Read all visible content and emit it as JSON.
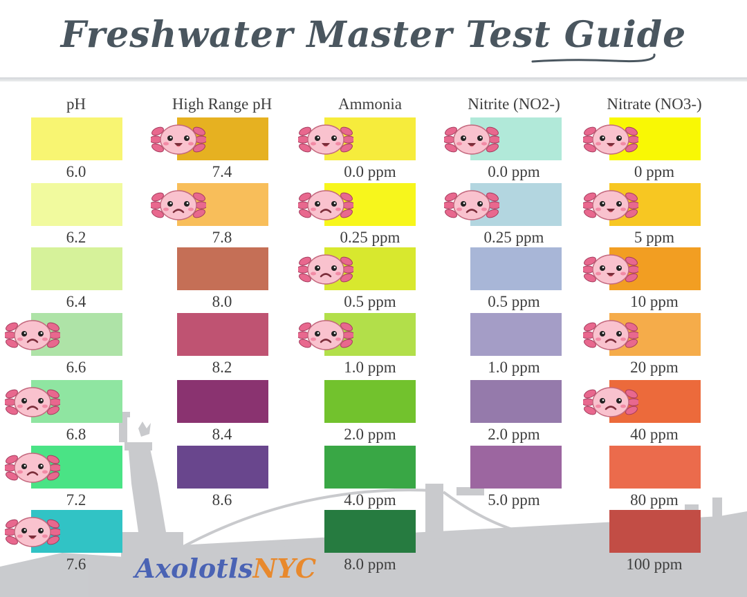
{
  "title": "Freshwater Master Test Guide",
  "logo": {
    "part1": "Axolotls",
    "part2": "NYC"
  },
  "colors": {
    "title": "#4a565f",
    "text": "#3d3d3d",
    "skyline": "#b7b9bd",
    "axolotl_body": "#f9c2ce",
    "axolotl_gills": "#e8688e"
  },
  "columns": [
    {
      "header": "pH",
      "items": [
        {
          "value": "6.0",
          "color": "#f8f572",
          "axolotl": "none"
        },
        {
          "value": "6.2",
          "color": "#f1fa9e",
          "axolotl": "none"
        },
        {
          "value": "6.4",
          "color": "#d6f29a",
          "axolotl": "none"
        },
        {
          "value": "6.6",
          "color": "#aee3a7",
          "axolotl": "sad"
        },
        {
          "value": "6.8",
          "color": "#8fe5a1",
          "axolotl": "sad"
        },
        {
          "value": "7.2",
          "color": "#4ae385",
          "axolotl": "sad"
        },
        {
          "value": "7.6",
          "color": "#31c3c5",
          "axolotl": "happy"
        }
      ]
    },
    {
      "header": "High Range pH",
      "items": [
        {
          "value": "7.4",
          "color": "#e6b121",
          "axolotl": "happy"
        },
        {
          "value": "7.8",
          "color": "#f8be5a",
          "axolotl": "sad"
        },
        {
          "value": "8.0",
          "color": "#c56f56",
          "axolotl": "none"
        },
        {
          "value": "8.2",
          "color": "#bf5372",
          "axolotl": "none"
        },
        {
          "value": "8.4",
          "color": "#8a3370",
          "axolotl": "none"
        },
        {
          "value": "8.6",
          "color": "#69468d",
          "axolotl": "none"
        }
      ]
    },
    {
      "header": "Ammonia",
      "items": [
        {
          "value": "0.0 ppm",
          "color": "#f6ec3c",
          "axolotl": "happy"
        },
        {
          "value": "0.25 ppm",
          "color": "#f7f61c",
          "axolotl": "sad"
        },
        {
          "value": "0.5 ppm",
          "color": "#d8e82e",
          "axolotl": "sad"
        },
        {
          "value": "1.0 ppm",
          "color": "#b2df4a",
          "axolotl": "sad"
        },
        {
          "value": "2.0 ppm",
          "color": "#72c22d",
          "axolotl": "none"
        },
        {
          "value": "4.0 ppm",
          "color": "#39a745",
          "axolotl": "none"
        },
        {
          "value": "8.0 ppm",
          "color": "#267b40",
          "axolotl": "none"
        }
      ]
    },
    {
      "header": "Nitrite (NO2-)",
      "items": [
        {
          "value": "0.0 ppm",
          "color": "#b1e9d9",
          "axolotl": "happy"
        },
        {
          "value": "0.25 ppm",
          "color": "#b3d6e0",
          "axolotl": "sad"
        },
        {
          "value": "0.5 ppm",
          "color": "#a8b6d7",
          "axolotl": "none"
        },
        {
          "value": "1.0 ppm",
          "color": "#a49dc6",
          "axolotl": "none"
        },
        {
          "value": "2.0 ppm",
          "color": "#957aab",
          "axolotl": "none"
        },
        {
          "value": "5.0 ppm",
          "color": "#9c66a0",
          "axolotl": "none"
        }
      ]
    },
    {
      "header": "Nitrate (NO3-)",
      "items": [
        {
          "value": "0 ppm",
          "color": "#f9f804",
          "axolotl": "happy"
        },
        {
          "value": "5 ppm",
          "color": "#f7c722",
          "axolotl": "happy"
        },
        {
          "value": "10 ppm",
          "color": "#f29e22",
          "axolotl": "happy"
        },
        {
          "value": "20 ppm",
          "color": "#f5ac4a",
          "axolotl": "sad"
        },
        {
          "value": "40 ppm",
          "color": "#ec6a3b",
          "axolotl": "sad"
        },
        {
          "value": "80 ppm",
          "color": "#eb6b4c",
          "axolotl": "none"
        },
        {
          "value": "100 ppm",
          "color": "#c24d45",
          "axolotl": "none"
        }
      ]
    }
  ]
}
